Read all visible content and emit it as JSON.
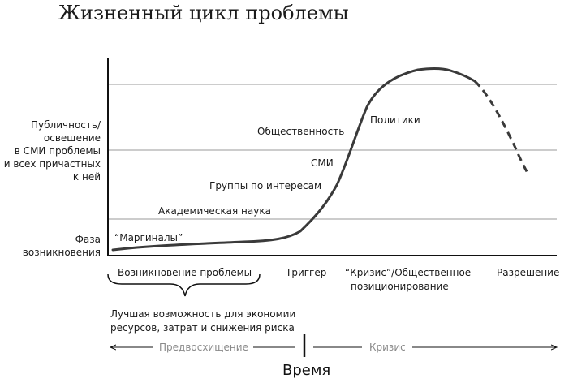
{
  "title": "Жизненный цикл проблемы",
  "y_axis_label": [
    "Публичность/",
    "освещение",
    "в СМИ проблемы",
    "и всех причастных",
    "к ней"
  ],
  "phase_origin_label": [
    "Фаза",
    "возникновения"
  ],
  "stakeholders": {
    "marginals": "“Маргиналы”",
    "academia": "Академическая наука",
    "interest_groups": "Группы по интересам",
    "media": "СМИ",
    "public": "Общественность",
    "politicians": "Политики"
  },
  "x_stages": {
    "emergence": "Возникновение проблемы",
    "trigger": "Триггер",
    "crisis_line1": "“Кризис”/Общественное",
    "crisis_line2": "позиционирование",
    "resolution": "Разрешение"
  },
  "brace_note": [
    "Лучшая возможность для экономии",
    "ресурсов, затрат и снижения риска"
  ],
  "timeline": {
    "anticipation": "Предвосхищение",
    "crisis": "Кризис",
    "time_label": "Время"
  },
  "colors": {
    "curve": "#3a3a3a",
    "gridline": "#9a9a9a",
    "axis": "#111111",
    "timeline_text": "#8a8a8a"
  }
}
